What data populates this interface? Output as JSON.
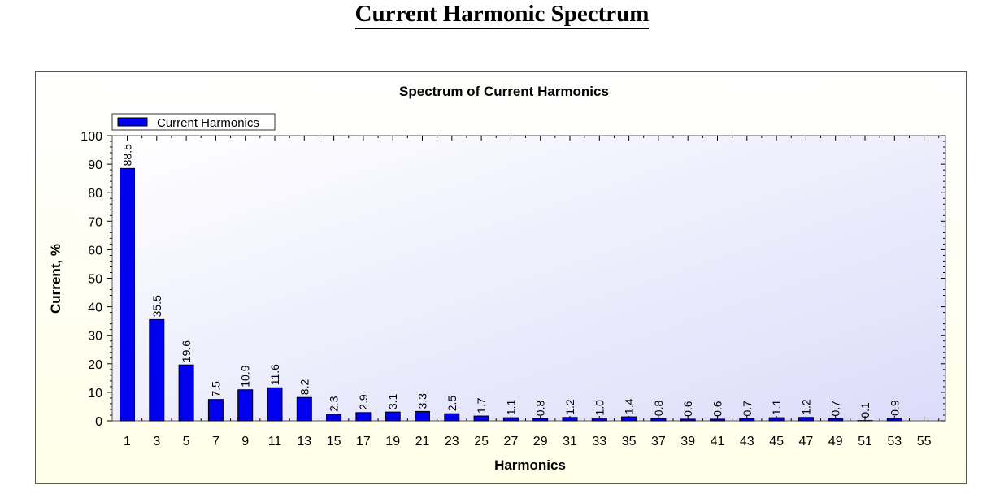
{
  "page": {
    "title": "Current Harmonic Spectrum"
  },
  "colors": {
    "bar": "#0000ee",
    "plot_bg_top": "#ffffff",
    "plot_bg_bottom": "#dcdcfa",
    "panel_bg": "#ffffe8"
  },
  "chart_data": {
    "type": "bar",
    "title": "Spectrum of Current Harmonics",
    "xlabel": "Harmonics",
    "ylabel": "Current, %",
    "ylim": [
      0,
      100
    ],
    "yticks": [
      0,
      10,
      20,
      30,
      40,
      50,
      60,
      70,
      80,
      90,
      100
    ],
    "legend": {
      "position": "top-left",
      "entries": [
        "Current Harmonics"
      ]
    },
    "categories": [
      "1",
      "3",
      "5",
      "7",
      "9",
      "11",
      "13",
      "15",
      "17",
      "19",
      "21",
      "23",
      "25",
      "27",
      "29",
      "31",
      "33",
      "35",
      "37",
      "39",
      "41",
      "43",
      "45",
      "47",
      "49",
      "51",
      "53",
      "55"
    ],
    "series": [
      {
        "name": "Current Harmonics",
        "values": [
          88.5,
          35.5,
          19.6,
          7.5,
          10.9,
          11.6,
          8.2,
          2.3,
          2.9,
          3.1,
          3.3,
          2.5,
          1.7,
          1.1,
          0.8,
          1.2,
          1.0,
          1.4,
          0.8,
          0.6,
          0.6,
          0.7,
          1.1,
          1.2,
          0.7,
          0.1,
          0.9,
          null
        ],
        "labels": [
          "88.5",
          "35.5",
          "19.6",
          "7.5",
          "10.9",
          "11.6",
          "8.2",
          "2.3",
          "2.9",
          "3.1",
          "3.3",
          "2.5",
          "1.7",
          "1.1",
          "0.8",
          "1.2",
          "1.0",
          "1.4",
          "0.8",
          "0.6",
          "0.6",
          "0.7",
          "1.1",
          "1.2",
          "0.7",
          "0.1",
          "0.9",
          ""
        ]
      }
    ]
  }
}
